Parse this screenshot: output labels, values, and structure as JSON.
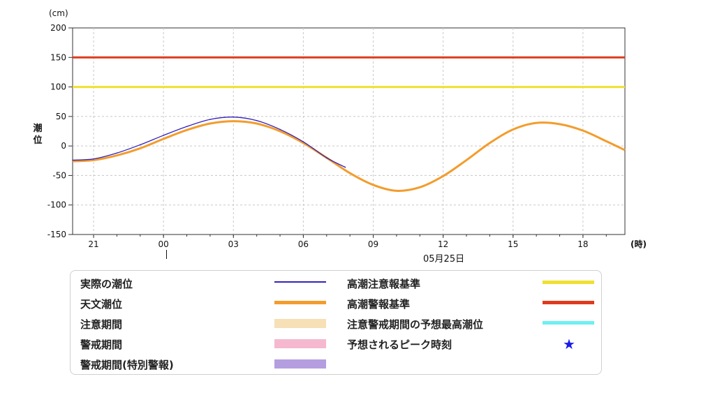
{
  "units": {
    "y": "(cm)",
    "x": "(時)"
  },
  "ylabel": "潮\n位",
  "date_label": "05月25日",
  "chart_data": {
    "type": "line",
    "ylabel": "潮位",
    "yunit": "(cm)",
    "xunit": "(時)",
    "ylim": [
      -150,
      200
    ],
    "yticks": [
      200,
      150,
      100,
      50,
      0,
      -50,
      -100,
      -150
    ],
    "xlim": [
      20.1,
      43.8
    ],
    "xticks": [
      {
        "hour": 21,
        "label": "21"
      },
      {
        "hour": 24,
        "label": "00"
      },
      {
        "hour": 27,
        "label": "03"
      },
      {
        "hour": 30,
        "label": "06"
      },
      {
        "hour": 33,
        "label": "09"
      },
      {
        "hour": 36,
        "label": "12"
      },
      {
        "hour": 39,
        "label": "15"
      },
      {
        "hour": 42,
        "label": "18"
      }
    ],
    "grid": true,
    "reference_lines": [
      {
        "name": "高潮注意報基準",
        "value": 100,
        "color": "#f0e030"
      },
      {
        "name": "高潮警報基準",
        "value": 150,
        "color": "#e03a1e"
      }
    ],
    "series": [
      {
        "name": "天文潮位",
        "color": "#f39c2c",
        "x": [
          20.1,
          21,
          22,
          23,
          24,
          25,
          26,
          27,
          28,
          29,
          30,
          31,
          32,
          33,
          34,
          35,
          36,
          37,
          38,
          39,
          40,
          41,
          42,
          43,
          43.8
        ],
        "y": [
          -26,
          -24,
          -16,
          -4,
          12,
          27,
          38,
          42,
          38,
          25,
          5,
          -20,
          -46,
          -66,
          -76,
          -70,
          -51,
          -24,
          5,
          28,
          39,
          37,
          26,
          8,
          -7
        ]
      },
      {
        "name": "実際の潮位",
        "color": "#3322bb",
        "x": [
          20.1,
          21,
          22,
          23,
          24,
          25,
          26,
          27,
          28,
          29,
          30,
          31,
          31.8
        ],
        "y": [
          -24,
          -22,
          -12,
          2,
          18,
          33,
          45,
          49,
          43,
          28,
          7,
          -20,
          -36
        ]
      }
    ]
  },
  "legend": {
    "items": [
      {
        "label": "実際の潮位",
        "color": "#3322bb"
      },
      {
        "label": "天文潮位",
        "color": "#f39c2c"
      },
      {
        "label": "注意期間",
        "color": "#f7dfb6"
      },
      {
        "label": "警戒期間",
        "color": "#f5b8cf"
      },
      {
        "label": "警戒期間(特別警報)",
        "color": "#b49ee0"
      },
      {
        "label": "高潮注意報基準",
        "color": "#f0e030"
      },
      {
        "label": "高潮警報基準",
        "color": "#e03a1e"
      },
      {
        "label": "注意警戒期間の予想最高潮位",
        "color": "#6ef0f0"
      },
      {
        "label": "予想されるピーク時刻",
        "color": "#1a1aee",
        "icon": "★"
      }
    ]
  }
}
